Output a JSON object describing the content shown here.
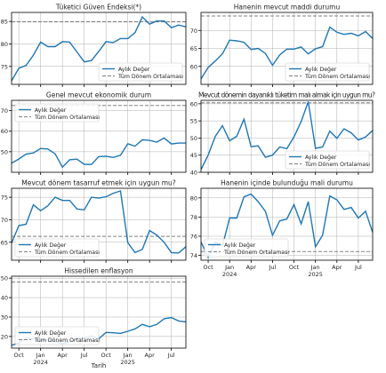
{
  "figure": {
    "xlabel": "Tarih",
    "x_tick_labels": [
      {
        "month": 10,
        "label": "Oct",
        "sub": ""
      },
      {
        "month": 13,
        "label": "Jan",
        "sub": "2024"
      },
      {
        "month": 16,
        "label": "Apr",
        "sub": ""
      },
      {
        "month": 19,
        "label": "Jul",
        "sub": ""
      },
      {
        "month": 22,
        "label": "Oct",
        "sub": ""
      },
      {
        "month": 25,
        "label": "Jan",
        "sub": "2025"
      },
      {
        "month": 28,
        "label": "Apr",
        "sub": ""
      },
      {
        "month": 31,
        "label": "Jul",
        "sub": ""
      }
    ],
    "x_range": [
      9,
      33
    ],
    "colors": {
      "series": "#1f77b4",
      "average": "#808080",
      "grid": "#b0b0b0"
    }
  },
  "chart_data": [
    {
      "type": "line",
      "title": "Tüketici Güven Endeksi(*)",
      "x_start": "2023-09",
      "ylim": [
        71,
        87
      ],
      "yticks": [
        75,
        80,
        85
      ],
      "average": 84.9,
      "legend": "bottom-right",
      "grid": true,
      "series": [
        {
          "name": "Aylık Değer",
          "values": [
            71.8,
            74.6,
            75.2,
            77.5,
            80.4,
            79.4,
            79.4,
            80.5,
            80.4,
            78.2,
            76.0,
            76.3,
            78.3,
            80.5,
            80.3,
            81.2,
            81.2,
            82.5,
            86.0,
            84.4,
            85.1,
            85.1,
            83.6,
            84.2,
            83.8
          ]
        },
        {
          "name": "Tüm Dönem Ortalaması",
          "values": []
        }
      ]
    },
    {
      "type": "line",
      "title": "Hanenin mevcut maddi durumu",
      "x_start": "2023-09",
      "ylim": [
        55,
        75
      ],
      "yticks": [
        60,
        65,
        70
      ],
      "average": 74.0,
      "legend": "bottom-right",
      "grid": true,
      "series": [
        {
          "name": "Aylık Değer",
          "values": [
            56.5,
            59.7,
            61.5,
            63.5,
            67.3,
            67.1,
            66.7,
            64.7,
            65.0,
            63.6,
            60.3,
            63.2,
            64.8,
            64.8,
            65.4,
            63.5,
            64.9,
            65.5,
            70.9,
            69.5,
            68.9,
            69.2,
            68.5,
            69.7,
            67.8
          ]
        },
        {
          "name": "Tüm Dönem Ortalaması",
          "values": []
        }
      ]
    },
    {
      "type": "line",
      "title": "Genel mevcut ekonomik durum",
      "x_start": "2023-09",
      "ylim": [
        40,
        75
      ],
      "yticks": [
        50,
        60,
        70
      ],
      "average": 72.5,
      "legend": "top-left",
      "grid": true,
      "series": [
        {
          "name": "Aylık Değer",
          "values": [
            44.4,
            46.5,
            48.8,
            49.4,
            51.6,
            51.3,
            49.0,
            42.5,
            46.1,
            46.4,
            43.9,
            43.8,
            47.6,
            47.8,
            47.2,
            48.3,
            53.9,
            52.7,
            55.8,
            55.5,
            54.7,
            56.7,
            53.8,
            54.2,
            54.2
          ]
        },
        {
          "name": "Tüm Dönem Ortalaması",
          "values": []
        }
      ]
    },
    {
      "type": "line",
      "title": "Mevcut dönemin dayanıklı tüketim malı almak için uygun mu?",
      "x_start": "2023-09",
      "ylim": [
        40,
        61
      ],
      "yticks": [
        40,
        45,
        50,
        55,
        60
      ],
      "average": 60.3,
      "legend": "bottom-right",
      "grid": true,
      "series": [
        {
          "name": "Aylık Değer",
          "values": [
            40.8,
            45.0,
            50.5,
            53.6,
            49.2,
            50.5,
            55.5,
            47.5,
            47.7,
            44.4,
            45.0,
            47.4,
            46.9,
            50.3,
            54.8,
            60.6,
            47.0,
            47.4,
            52.0,
            49.9,
            52.7,
            51.5,
            49.4,
            50.3,
            52.2
          ]
        },
        {
          "name": "Tüm Dönem Ortalaması",
          "values": []
        }
      ]
    },
    {
      "type": "line",
      "title": "Mevcut dönem tasarruf etmek için uygun mu?",
      "x_start": "2023-09",
      "ylim": [
        61,
        77
      ],
      "yticks": [
        65,
        70,
        75
      ],
      "average": 66.3,
      "legend": "bottom-left",
      "grid": true,
      "series": [
        {
          "name": "Aylık Değer",
          "values": [
            64.8,
            68.7,
            69.0,
            73.3,
            72.0,
            73.1,
            75.0,
            74.3,
            74.3,
            72.4,
            72.2,
            75.0,
            74.8,
            75.1,
            75.9,
            76.4,
            64.9,
            62.7,
            63.4,
            67.6,
            66.6,
            65.0,
            62.7,
            62.6,
            64.0
          ]
        },
        {
          "name": "Tüm Dönem Ortalaması",
          "values": []
        }
      ]
    },
    {
      "type": "line",
      "title": "Hanenin içinde bulunduğu mali durumu",
      "x_start": "2023-09",
      "ylim": [
        73.5,
        81
      ],
      "yticks": [
        74,
        76,
        78,
        80
      ],
      "average": 74.4,
      "legend": "bottom-left",
      "grid": true,
      "series": [
        {
          "name": "Aylık Değer",
          "values": [
            75.4,
            73.8,
            75.4,
            75.0,
            77.9,
            77.9,
            80.1,
            80.4,
            79.6,
            78.6,
            76.1,
            77.6,
            77.8,
            79.3,
            77.3,
            79.6,
            74.9,
            76.1,
            80.2,
            79.8,
            78.8,
            79.0,
            77.9,
            78.6,
            76.4
          ]
        },
        {
          "name": "Tüm Dönem Ortalaması",
          "values": []
        }
      ]
    },
    {
      "type": "line",
      "title": "Hissedilen enflasyon",
      "x_start": "2023-09",
      "ylim": [
        14,
        51
      ],
      "yticks": [
        20,
        30,
        40,
        50
      ],
      "average": 48.0,
      "legend": "bottom-left",
      "grid": true,
      "series": [
        {
          "name": "Aylık Değer",
          "values": [
            15.5,
            16.6,
            19.2,
            18.6,
            17.9,
            18.2,
            17.4,
            16.2,
            17.4,
            18.5,
            19.2,
            20.3,
            18.8,
            22.1,
            21.9,
            21.6,
            22.7,
            23.9,
            26.2,
            25.0,
            26.2,
            29.1,
            29.7,
            28.0,
            27.5
          ]
        },
        {
          "name": "Tüm Dönem Ortalaması",
          "values": []
        }
      ]
    }
  ]
}
